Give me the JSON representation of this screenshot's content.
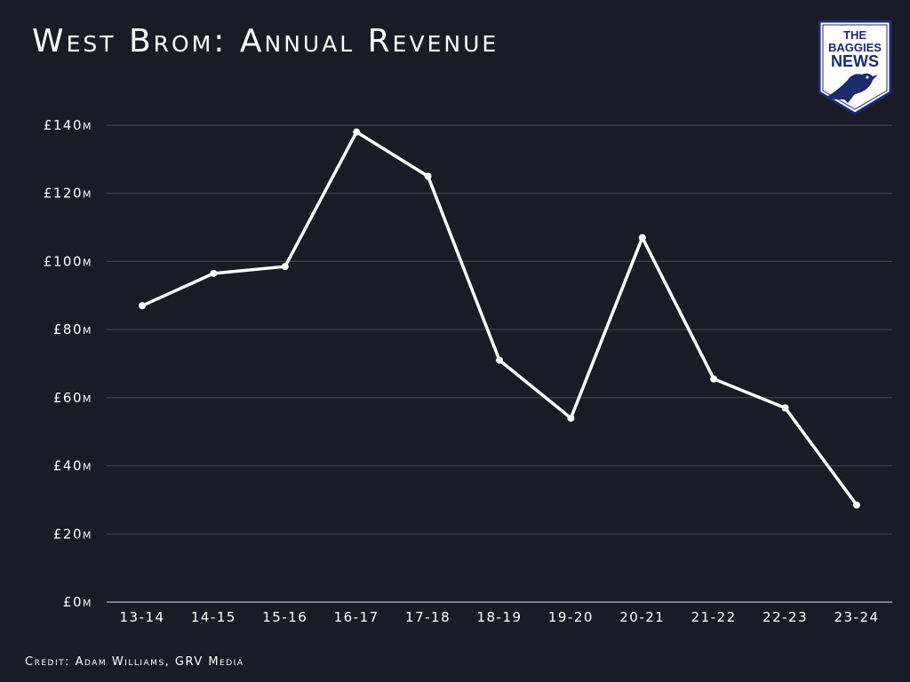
{
  "title": "West Brom: Annual Revenue",
  "credit": "Credit: Adam Williams, GRV Media",
  "logo": {
    "line1": "THE",
    "line2": "BAGGIES",
    "line3": "NEWS",
    "icon": "baggie-bird-icon"
  },
  "colors": {
    "background": "#1a1b27",
    "line": "#ffffff",
    "grid": "#4a4c5c",
    "logo_blue": "#1c2a6e"
  },
  "chart_data": {
    "type": "line",
    "title": "West Brom: Annual Revenue",
    "xlabel": "",
    "ylabel": "",
    "categories": [
      "13-14",
      "14-15",
      "15-16",
      "16-17",
      "17-18",
      "18-19",
      "19-20",
      "20-21",
      "21-22",
      "22-23",
      "23-24"
    ],
    "series": [
      {
        "values": [
          87,
          96.5,
          98.5,
          138,
          125,
          71,
          54,
          107,
          65.5,
          57,
          28.5
        ]
      }
    ],
    "ylim": [
      0,
      140
    ],
    "yticks": [
      0,
      20,
      40,
      60,
      80,
      100,
      120,
      140
    ],
    "ytick_labels": [
      "£0m",
      "£20m",
      "£40m",
      "£60m",
      "£80m",
      "£100m",
      "£120m",
      "£140m"
    ],
    "grid": true,
    "legend": "none"
  }
}
